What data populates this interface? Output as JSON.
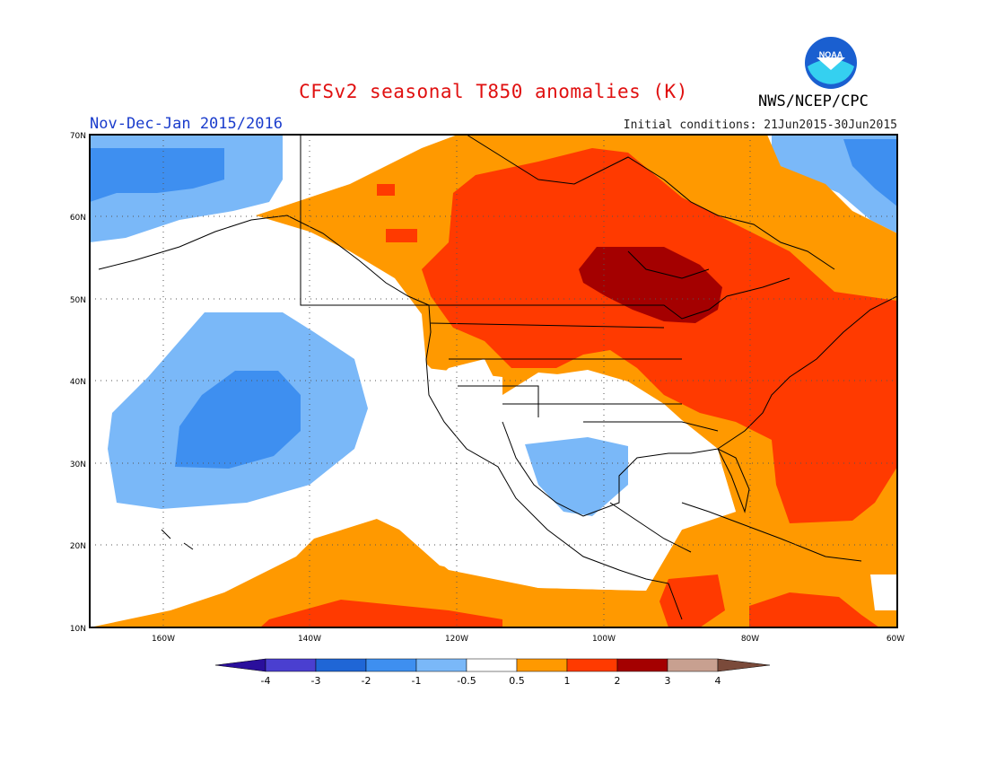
{
  "title": "CFSv2 seasonal T850 anomalies (K)",
  "agency": "NWS/NCEP/CPC",
  "logo_text": "NOAA",
  "period": "Nov-Dec-Jan 2015/2016",
  "initial_conditions": "Initial conditions: 21Jun2015-30Jun2015",
  "lat_labels": [
    "70N",
    "60N",
    "50N",
    "40N",
    "30N",
    "20N",
    "10N"
  ],
  "lon_labels": [
    "160W",
    "140W",
    "120W",
    "100W",
    "80W",
    "60W"
  ],
  "legend": {
    "labels": [
      "-4",
      "-3",
      "-2",
      "-1",
      "-0.5",
      "0.5",
      "1",
      "2",
      "3",
      "4"
    ],
    "colors": [
      "#2a0f9c",
      "#4a3fd0",
      "#1f66d6",
      "#3e8ff0",
      "#7ab8f8",
      "#ffffff",
      "#ff9900",
      "#ff3a00",
      "#a40000",
      "#c8a090",
      "#7a4a3a"
    ]
  },
  "map": {
    "domain": "North Pacific / North America / Western Atlantic, 170W-60W, 10N-70N",
    "highlights": [
      "warm anomalies +2 to +3 K over central Canada",
      "warm anomalies over eastern US and western Atlantic",
      "cold anomalies -1 to -2 K over northeast Pacific",
      "weak cold anomalies over northern Mexico / Texas"
    ]
  }
}
